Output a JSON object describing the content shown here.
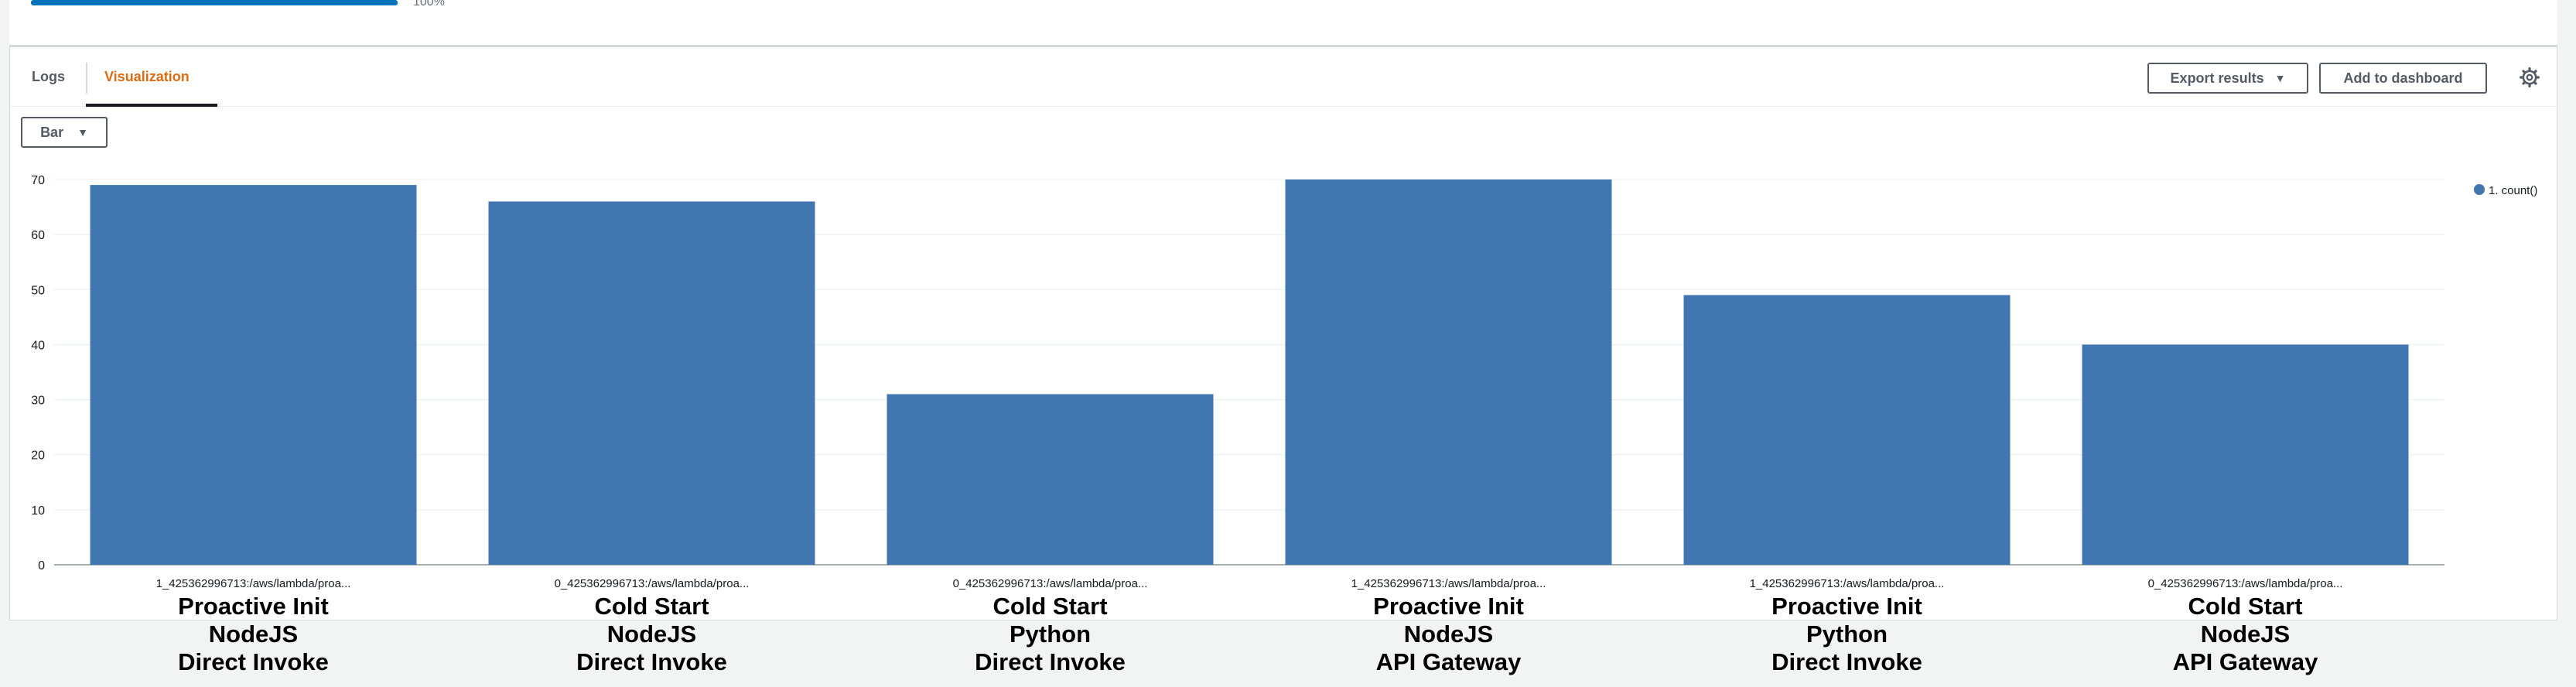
{
  "progress": {
    "value": 1.0,
    "label": "100%"
  },
  "tabs": {
    "logs": "Logs",
    "visualization": "Visualization"
  },
  "toolbar": {
    "export_label": "Export results",
    "dashboard_label": "Add to dashboard"
  },
  "chart_type_select": {
    "value": "Bar"
  },
  "colors": {
    "bar": "#4176b0",
    "accent": "#dd6b10",
    "progress": "#0073bb"
  },
  "chart_data": {
    "type": "bar",
    "categories": [
      "1_425362996713:/aws/lambda/proa...",
      "0_425362996713:/aws/lambda/proa...",
      "0_425362996713:/aws/lambda/proa...",
      "1_425362996713:/aws/lambda/proa...",
      "1_425362996713:/aws/lambda/proa...",
      "0_425362996713:/aws/lambda/proa..."
    ],
    "series": [
      {
        "name": "1. count()",
        "values": [
          69,
          66,
          31,
          70,
          49,
          40
        ]
      }
    ],
    "yticks": [
      0,
      10,
      20,
      30,
      40,
      50,
      60,
      70
    ],
    "ylim": [
      0,
      70
    ],
    "grid": true,
    "legend": "top-right"
  },
  "annotations": [
    [
      "Proactive Init",
      "NodeJS",
      "Direct Invoke"
    ],
    [
      "Cold Start",
      "NodeJS",
      "Direct Invoke"
    ],
    [
      "Cold Start",
      "Python",
      "Direct Invoke"
    ],
    [
      "Proactive Init",
      "NodeJS",
      "API Gateway"
    ],
    [
      "Proactive Init",
      "Python",
      "Direct Invoke"
    ],
    [
      "Cold Start",
      "NodeJS",
      "API Gateway"
    ]
  ]
}
